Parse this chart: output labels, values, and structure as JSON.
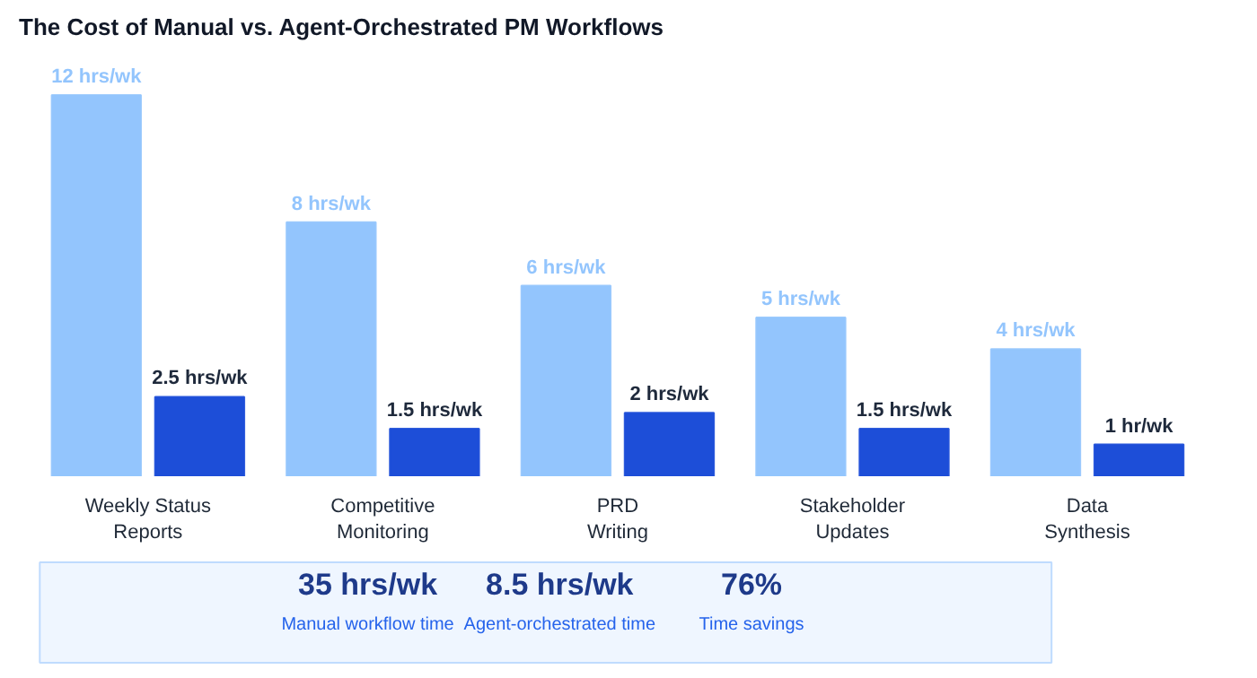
{
  "chart_data": {
    "type": "bar",
    "title": "The Cost of Manual vs. Agent-Orchestrated PM Workflows",
    "categories": [
      "Weekly Status\nReports",
      "Competitive\nMonitoring",
      "PRD\nWriting",
      "Stakeholder\nUpdates",
      "Data\nSynthesis"
    ],
    "series": [
      {
        "color": "#93c5fd",
        "values": [
          12,
          8,
          6,
          5,
          4
        ],
        "value_labels": [
          "12 hrs/wk",
          "8 hrs/wk",
          "6 hrs/wk",
          "5 hrs/wk",
          "4 hrs/wk"
        ]
      },
      {
        "color": "#1d4ed8",
        "values": [
          2.5,
          1.5,
          2,
          1.5,
          1
        ],
        "value_labels": [
          "2.5 hrs/wk",
          "1.5 hrs/wk",
          "2 hrs/wk",
          "1.5 hrs/wk",
          "1 hr/wk"
        ]
      }
    ],
    "tick_labels": "x",
    "grid": false,
    "annotations": [
      "35 hrs/wk",
      "Manual workflow time",
      "8.5 hrs/wk",
      "Agent-orchestrated time",
      "76%",
      "Time savings"
    ]
  }
}
